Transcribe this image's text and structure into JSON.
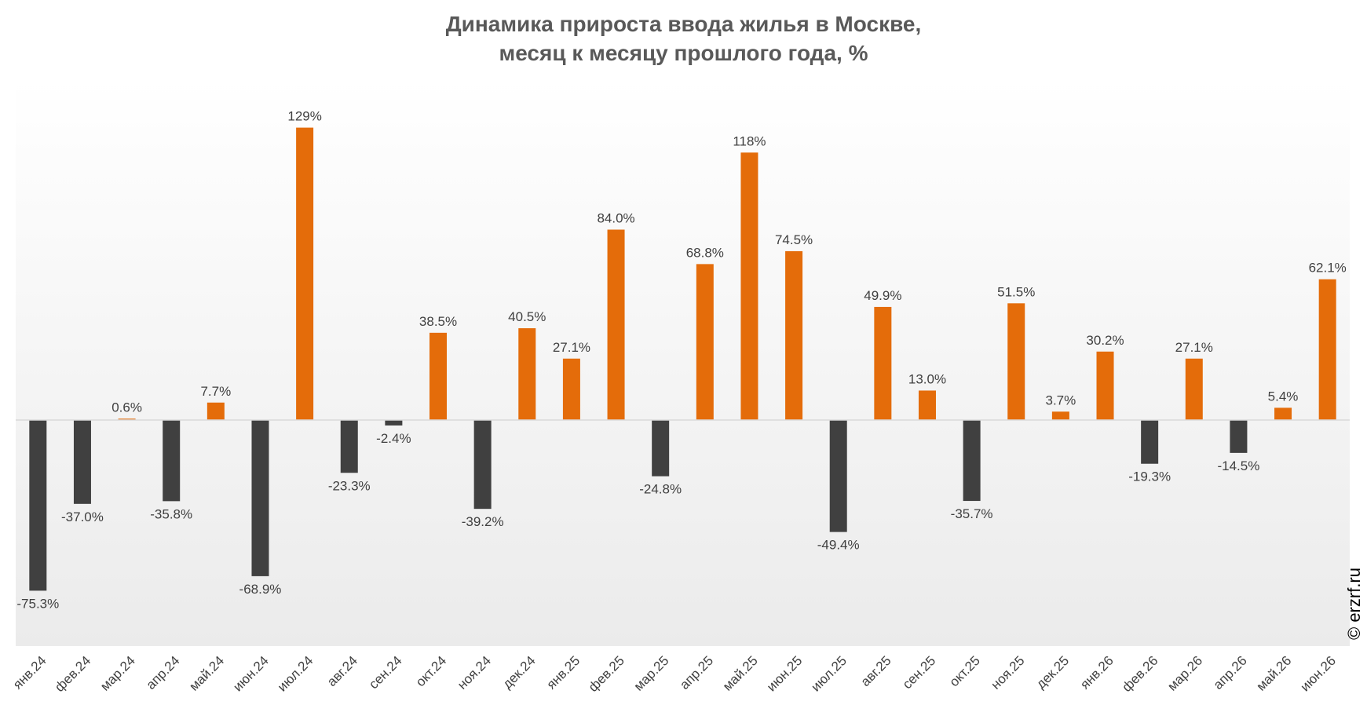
{
  "chart_data": {
    "type": "bar",
    "title_lines": [
      "Динамика прироста ввода жилья в Москве,",
      "месяц к месяцу прошлого года, %"
    ],
    "categories": [
      "янв.24",
      "фев.24",
      "мар.24",
      "апр.24",
      "май.24",
      "июн.24",
      "июл.24",
      "авг.24",
      "сен.24",
      "окт.24",
      "ноя.24",
      "дек.24",
      "янв.25",
      "фев.25",
      "мар.25",
      "апр.25",
      "май.25",
      "июн.25",
      "июл.25",
      "авг.25",
      "сен.25",
      "окт.25",
      "ноя.25",
      "дек.25",
      "янв.26",
      "фев.26",
      "мар.26",
      "апр.26",
      "май.26",
      "июн.26"
    ],
    "values": [
      -75.3,
      -37.0,
      0.6,
      -35.8,
      7.7,
      -68.9,
      129,
      -23.3,
      -2.4,
      38.5,
      -39.2,
      40.5,
      27.1,
      84.0,
      -24.8,
      68.8,
      118,
      74.5,
      -49.4,
      49.9,
      13.0,
      -35.7,
      51.5,
      3.7,
      30.2,
      -19.3,
      27.1,
      -14.5,
      5.4,
      62.1
    ],
    "labels": [
      "-75.3%",
      "-37.0%",
      "0.6%",
      "-35.8%",
      "7.7%",
      "-68.9%",
      "129%",
      "-23.3%",
      "-2.4%",
      "38.5%",
      "-39.2%",
      "40.5%",
      "27.1%",
      "84.0%",
      "-24.8%",
      "68.8%",
      "118%",
      "74.5%",
      "-49.4%",
      "49.9%",
      "13.0%",
      "-35.7%",
      "51.5%",
      "3.7%",
      "30.2%",
      "-19.3%",
      "27.1%",
      "-14.5%",
      "5.4%",
      "62.1%"
    ],
    "colors": {
      "positive": "#E46C0A",
      "negative": "#404040"
    },
    "ylim": [
      -100,
      150
    ],
    "legend": "none",
    "grid": false
  },
  "watermark": "© erzrf.ru"
}
